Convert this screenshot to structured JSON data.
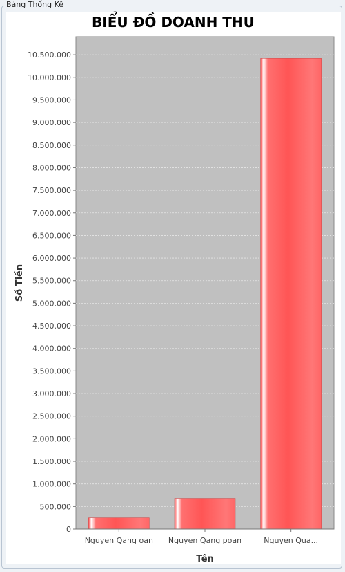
{
  "panel": {
    "title": "Bảng Thống Kê"
  },
  "chart_data": {
    "type": "bar",
    "title": "BIỂU ĐỒ DOANH THU",
    "xlabel": "Tên",
    "ylabel": "Số Tiền",
    "categories": [
      "Nguyen Qang oan",
      "Nguyen Qang poan",
      "Nguyen Qua..."
    ],
    "values": [
      250000,
      680000,
      10420000
    ],
    "ylim": [
      0,
      10900000
    ],
    "yticks": [
      0,
      500000,
      1000000,
      1500000,
      2000000,
      2500000,
      3000000,
      3500000,
      4000000,
      4500000,
      5000000,
      5500000,
      6000000,
      6500000,
      7000000,
      7500000,
      8000000,
      8500000,
      9000000,
      9500000,
      10000000,
      10500000
    ],
    "ytick_labels": [
      "0",
      "500.000",
      "1.000.000",
      "1.500.000",
      "2.000.000",
      "2.500.000",
      "3.000.000",
      "3.500.000",
      "4.000.000",
      "4.500.000",
      "5.000.000",
      "5.500.000",
      "6.000.000",
      "6.500.000",
      "7.000.000",
      "7.500.000",
      "8.000.000",
      "8.500.000",
      "9.000.000",
      "9.500.000",
      "10.000.000",
      "10.500.000"
    ],
    "grid": true,
    "colors": {
      "bar": "#ff5555",
      "plot_bg": "#c0c0c0",
      "grid": "#e6e6e6"
    }
  }
}
